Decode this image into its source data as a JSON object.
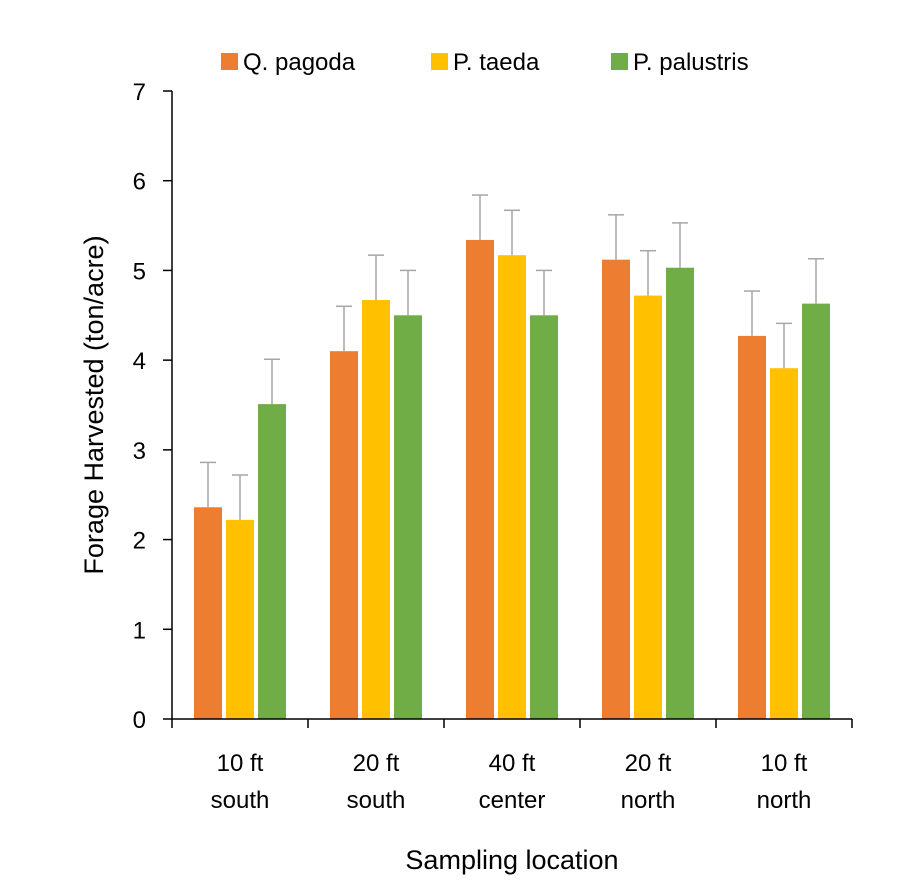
{
  "chart_data": {
    "type": "bar",
    "title": "",
    "xlabel": "Sampling location",
    "ylabel": "Forage Harvested (ton/acre)",
    "ylim": [
      0,
      7
    ],
    "yticks": [
      "0",
      "1",
      "2",
      "3",
      "4",
      "5",
      "6",
      "7"
    ],
    "grid": false,
    "legend_position": "top",
    "categories": [
      [
        "10 ft",
        "south"
      ],
      [
        "20 ft",
        "south"
      ],
      [
        "40 ft",
        "center"
      ],
      [
        "20 ft",
        "north"
      ],
      [
        "10 ft",
        "north"
      ]
    ],
    "series": [
      {
        "name": "Q. pagoda",
        "color": "#ED7D31",
        "values": [
          2.36,
          4.1,
          5.34,
          5.12,
          4.27
        ],
        "error": [
          0.5,
          0.5,
          0.5,
          0.5,
          0.5
        ]
      },
      {
        "name": "P. taeda",
        "color": "#FFC000",
        "values": [
          2.22,
          4.67,
          5.17,
          4.72,
          3.91
        ],
        "error": [
          0.5,
          0.5,
          0.5,
          0.5,
          0.5
        ]
      },
      {
        "name": "P. palustris",
        "color": "#70AD47",
        "values": [
          3.51,
          4.5,
          4.5,
          5.03,
          4.63
        ],
        "error": [
          0.5,
          0.5,
          0.5,
          0.5,
          0.5
        ]
      }
    ]
  }
}
